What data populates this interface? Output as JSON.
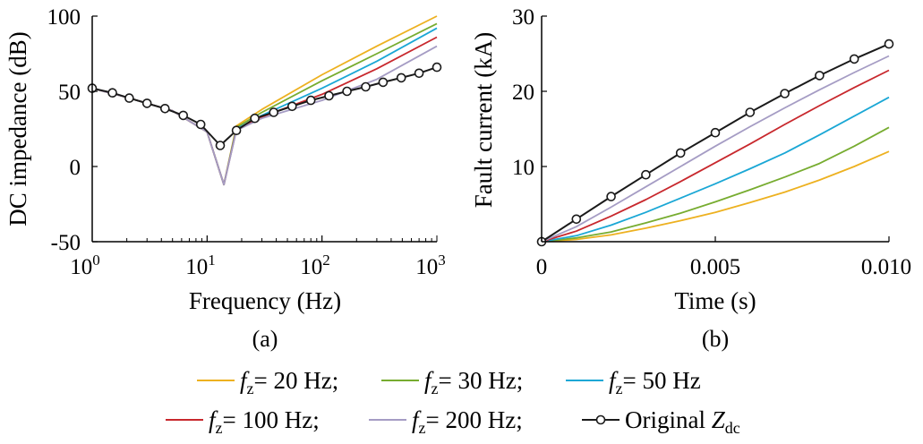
{
  "chart_data": [
    {
      "type": "line",
      "panel_label": "(a)",
      "xlabel": "Frequency (Hz)",
      "ylabel": "DC impedance (dB)",
      "x_scale": "log",
      "xlim": [
        1,
        1000
      ],
      "ylim": [
        -50,
        100
      ],
      "x_ticks": [
        {
          "base": "10",
          "exp": "0"
        },
        {
          "base": "10",
          "exp": "1"
        },
        {
          "base": "10",
          "exp": "2"
        },
        {
          "base": "10",
          "exp": "3"
        }
      ],
      "y_ticks": [
        "100",
        "50",
        "0",
        "-50"
      ],
      "grid": false,
      "series": [
        {
          "legend_index": 0,
          "color": "#EDB120",
          "x": [
            1,
            2,
            5,
            10,
            14,
            18,
            30,
            100,
            300,
            1000
          ],
          "y": [
            52,
            46,
            37,
            23,
            -12,
            27,
            38,
            61,
            80,
            100
          ]
        },
        {
          "legend_index": 1,
          "color": "#77AC30",
          "x": [
            1,
            2,
            5,
            10,
            14,
            18,
            30,
            100,
            300,
            1000
          ],
          "y": [
            52,
            46,
            37,
            23,
            -12,
            26,
            36,
            57,
            75,
            95
          ]
        },
        {
          "legend_index": 2,
          "color": "#1AA7D5",
          "x": [
            1,
            2,
            5,
            10,
            14,
            18,
            30,
            100,
            300,
            1000
          ],
          "y": [
            52,
            46,
            37,
            23,
            -12,
            25,
            34,
            52,
            70,
            92
          ]
        },
        {
          "legend_index": 3,
          "color": "#C8282D",
          "x": [
            1,
            2,
            5,
            10,
            14,
            18,
            30,
            100,
            300,
            1000
          ],
          "y": [
            52,
            46,
            37,
            23,
            -12,
            24.5,
            33,
            48,
            65,
            86
          ]
        },
        {
          "legend_index": 4,
          "color": "#A59CC4",
          "x": [
            1,
            2,
            5,
            10,
            14,
            18,
            30,
            100,
            300,
            1000
          ],
          "y": [
            52,
            46,
            37,
            23,
            -12,
            24,
            32,
            44,
            58,
            80
          ]
        },
        {
          "legend_index": 5,
          "color": "#1a1a1a",
          "markers": true,
          "x": [
            1,
            1.5,
            2.1,
            3,
            4.3,
            6.2,
            8.8,
            13,
            18,
            26,
            38,
            55,
            80,
            115,
            165,
            240,
            340,
            490,
            700,
            1000
          ],
          "y": [
            52,
            49,
            45.5,
            42,
            38.5,
            34,
            28,
            14,
            24,
            32,
            36,
            40,
            44,
            47,
            50,
            53,
            56,
            59,
            62,
            66
          ]
        }
      ]
    },
    {
      "type": "line",
      "panel_label": "(b)",
      "xlabel": "Time (s)",
      "ylabel": "Fault current (kA)",
      "xlim": [
        0,
        0.01
      ],
      "ylim": [
        0,
        30
      ],
      "x_ticks": [
        "0",
        "0.005",
        "0.010"
      ],
      "y_ticks": [
        "30",
        "20",
        "10"
      ],
      "grid": false,
      "series": [
        {
          "legend_index": 0,
          "color": "#EDB120",
          "x": [
            0,
            0.001,
            0.002,
            0.003,
            0.004,
            0.005,
            0.006,
            0.007,
            0.008,
            0.009,
            0.01
          ],
          "y": [
            0,
            0.3,
            0.9,
            1.8,
            2.8,
            3.9,
            5.2,
            6.6,
            8.2,
            10,
            12
          ]
        },
        {
          "legend_index": 1,
          "color": "#77AC30",
          "x": [
            0,
            0.001,
            0.002,
            0.003,
            0.004,
            0.005,
            0.006,
            0.007,
            0.008,
            0.009,
            0.01
          ],
          "y": [
            0,
            0.5,
            1.3,
            2.5,
            3.8,
            5.3,
            6.9,
            8.6,
            10.4,
            12.7,
            15.2
          ]
        },
        {
          "legend_index": 2,
          "color": "#1AA7D5",
          "x": [
            0,
            0.001,
            0.002,
            0.003,
            0.004,
            0.005,
            0.006,
            0.007,
            0.008,
            0.009,
            0.01
          ],
          "y": [
            0,
            0.8,
            2.2,
            3.9,
            5.8,
            7.7,
            9.7,
            11.8,
            14.2,
            16.7,
            19.2
          ]
        },
        {
          "legend_index": 3,
          "color": "#C8282D",
          "x": [
            0,
            0.001,
            0.002,
            0.003,
            0.004,
            0.005,
            0.006,
            0.007,
            0.008,
            0.009,
            0.01
          ],
          "y": [
            0,
            1.4,
            3.4,
            5.6,
            8.0,
            10.5,
            13.0,
            15.6,
            18.1,
            20.5,
            22.8
          ]
        },
        {
          "legend_index": 4,
          "color": "#A59CC4",
          "x": [
            0,
            0.001,
            0.002,
            0.003,
            0.004,
            0.005,
            0.006,
            0.007,
            0.008,
            0.009,
            0.01
          ],
          "y": [
            0,
            2.0,
            4.6,
            7.3,
            10.0,
            12.7,
            15.3,
            17.8,
            20.2,
            22.5,
            24.7
          ]
        },
        {
          "legend_index": 5,
          "color": "#1a1a1a",
          "markers": true,
          "x": [
            0,
            0.001,
            0.002,
            0.003,
            0.004,
            0.005,
            0.006,
            0.007,
            0.008,
            0.009,
            0.01
          ],
          "y": [
            0,
            3.0,
            6.0,
            8.9,
            11.8,
            14.5,
            17.2,
            19.7,
            22.1,
            24.3,
            26.3
          ]
        }
      ]
    }
  ],
  "legend": [
    {
      "symbol": "f",
      "sub": "z",
      "text": "= 20 Hz;",
      "color": "#EDB120"
    },
    {
      "symbol": "f",
      "sub": "z",
      "text": "= 30 Hz;",
      "color": "#77AC30"
    },
    {
      "symbol": "f",
      "sub": "z",
      "text": "= 50 Hz",
      "color": "#1AA7D5"
    },
    {
      "symbol": "f",
      "sub": "z",
      "text": "= 100 Hz;",
      "color": "#C8282D"
    },
    {
      "symbol": "f",
      "sub": "z",
      "text": "= 200 Hz;",
      "color": "#A59CC4"
    },
    {
      "prefix": "Original ",
      "symbol": "Z",
      "sub": "dc",
      "color": "#1a1a1a",
      "markers": true
    }
  ]
}
